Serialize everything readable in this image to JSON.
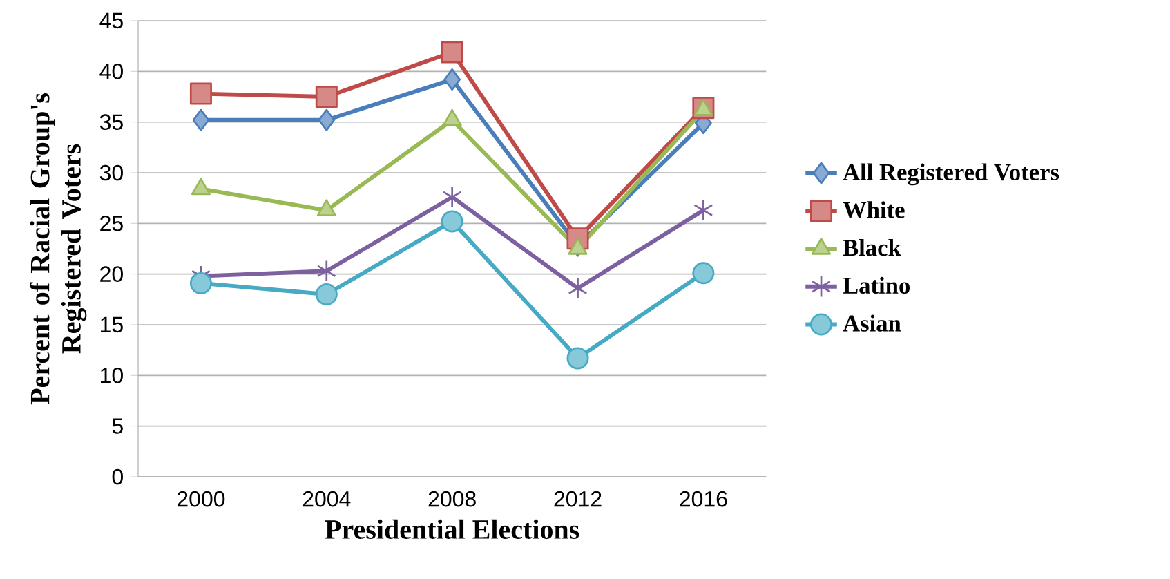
{
  "chart_data": {
    "type": "line",
    "xlabel": "Presidential Elections",
    "ylabel": "Percent of Racial Group's Registered Voters",
    "categories": [
      "2000",
      "2004",
      "2008",
      "2012",
      "2016"
    ],
    "ylim": [
      0,
      45
    ],
    "yticks": [
      0,
      5,
      10,
      15,
      20,
      25,
      30,
      35,
      40,
      45
    ],
    "grid": "y",
    "legend": "right",
    "series": [
      {
        "name": "All Registered Voters",
        "color": "#4a7ebb",
        "marker": "diamond",
        "values": [
          35.2,
          35.2,
          39.2,
          22.8,
          34.9
        ]
      },
      {
        "name": "White",
        "color": "#be4b48",
        "marker": "square",
        "values": [
          37.8,
          37.5,
          41.9,
          23.5,
          36.4
        ]
      },
      {
        "name": "Black",
        "color": "#98b954",
        "marker": "triangle",
        "values": [
          28.4,
          26.3,
          35.2,
          22.5,
          36.2
        ]
      },
      {
        "name": "Latino",
        "color": "#7d60a0",
        "marker": "cross",
        "values": [
          19.8,
          20.3,
          27.6,
          18.6,
          26.3
        ]
      },
      {
        "name": "Asian",
        "color": "#46aac5",
        "marker": "circle",
        "values": [
          19.1,
          18.0,
          25.2,
          11.7,
          20.1
        ]
      }
    ]
  }
}
